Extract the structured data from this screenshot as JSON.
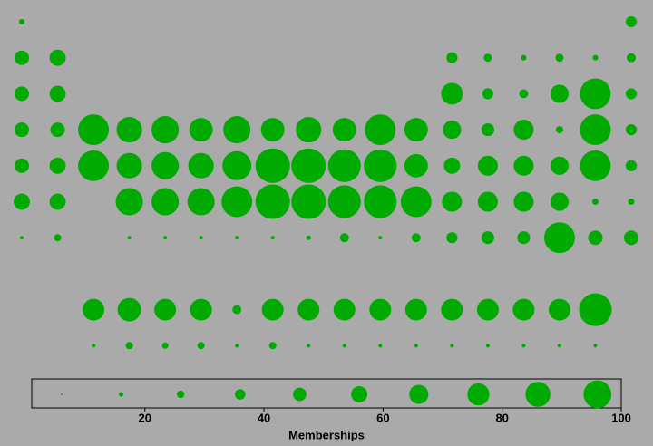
{
  "chart_data": {
    "type": "bubble",
    "color": "#00aa00",
    "rows": [
      [
        19,
        null,
        null,
        null,
        null,
        null,
        null,
        null,
        null,
        null,
        null,
        null,
        null,
        null,
        null,
        null,
        null,
        38
      ],
      [
        50,
        56,
        null,
        null,
        null,
        null,
        null,
        null,
        null,
        null,
        null,
        null,
        38,
        28,
        19,
        28,
        19,
        31
      ],
      [
        50,
        56,
        null,
        null,
        null,
        null,
        null,
        null,
        null,
        null,
        null,
        null,
        75,
        38,
        31,
        63,
        106,
        38
      ],
      [
        50,
        50,
        106,
        88,
        94,
        81,
        94,
        81,
        88,
        81,
        106,
        81,
        63,
        44,
        69,
        25,
        106,
        38
      ],
      [
        50,
        56,
        106,
        88,
        94,
        88,
        100,
        119,
        119,
        113,
        113,
        81,
        56,
        69,
        69,
        63,
        106,
        38
      ],
      [
        56,
        56,
        null,
        94,
        94,
        94,
        106,
        119,
        119,
        113,
        113,
        106,
        69,
        69,
        69,
        63,
        22,
        22
      ],
      [
        13,
        25,
        null,
        13,
        13,
        13,
        13,
        13,
        16,
        31,
        13,
        31,
        38,
        44,
        44,
        106,
        50,
        50
      ]
    ],
    "lanthanides": [
      75,
      81,
      75,
      75,
      31,
      75,
      75,
      75,
      75,
      75,
      75,
      75,
      75,
      75,
      113
    ],
    "actinides": [
      13,
      25,
      22,
      25,
      13,
      25,
      13,
      13,
      13,
      13,
      13,
      13,
      13,
      13,
      13
    ],
    "legend_sizes": [
      6,
      16,
      26,
      36,
      46,
      56,
      66,
      76,
      86,
      96
    ],
    "xlabel": "Memberships",
    "xlim": [
      1,
      100
    ],
    "xticks": [
      20,
      40,
      60,
      80,
      100
    ]
  }
}
